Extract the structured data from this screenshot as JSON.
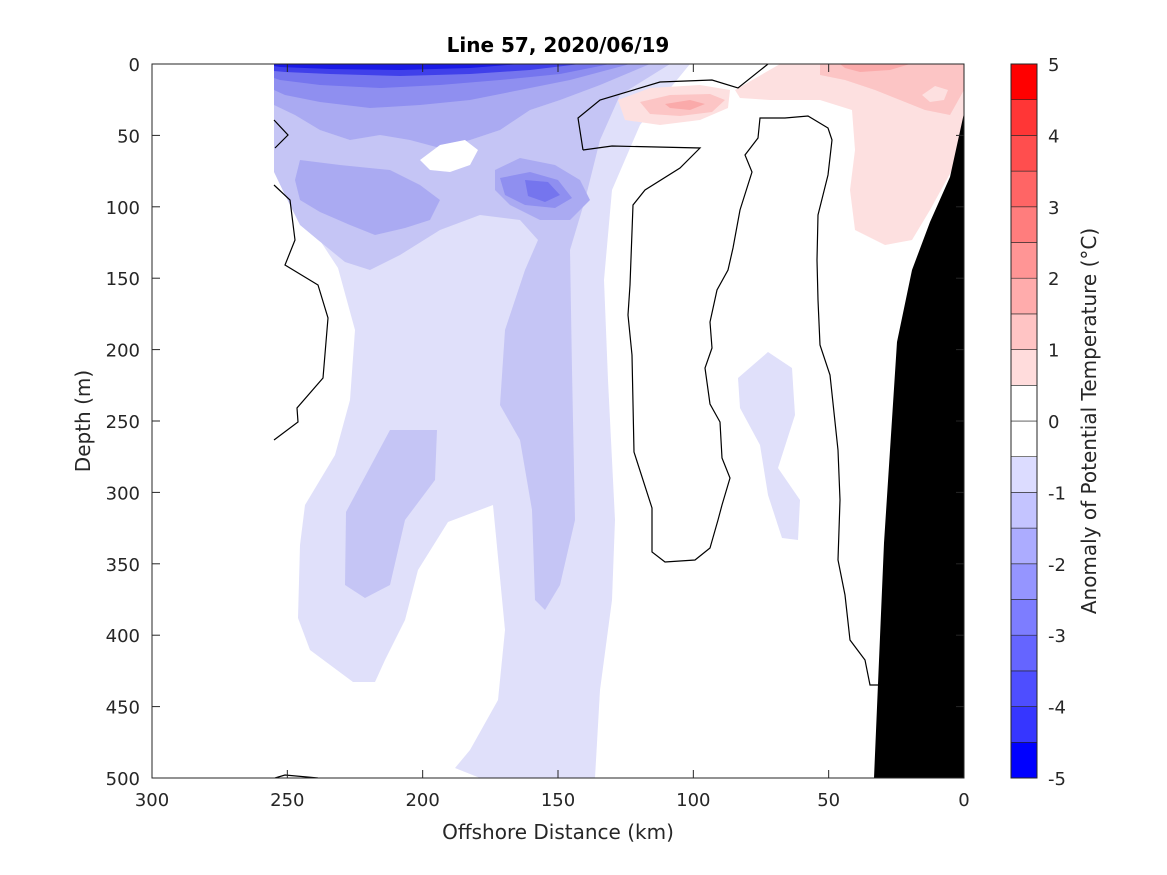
{
  "chart_data": {
    "type": "heatmap",
    "title": "Line 57, 2020/06/19",
    "xlabel": "Offshore Distance (km)",
    "ylabel": "Depth (m)",
    "colorbar_label": "Anomaly of Potential Temperature (°C)",
    "xlim": [
      300,
      0
    ],
    "ylim": [
      500,
      0
    ],
    "x_reversed": true,
    "y_reversed": true,
    "xticks": [
      "300",
      "250",
      "200",
      "150",
      "100",
      "50",
      "0"
    ],
    "yticks": [
      "0",
      "50",
      "100",
      "150",
      "200",
      "250",
      "300",
      "350",
      "400",
      "450",
      "500"
    ],
    "colorbar_ticks": [
      "5",
      "4",
      "3",
      "2",
      "1",
      "0",
      "-1",
      "-2",
      "-3",
      "-4",
      "-5"
    ],
    "colorbar_range": [
      -5,
      5
    ],
    "contour_interval": 0.5,
    "colors": {
      "positive_max": "#ff0000",
      "negative_max": "#0000ff",
      "zero": "#ffffff",
      "bathymetry": "#000000"
    },
    "data_extent_x": [
      0,
      255
    ],
    "features": [
      {
        "kind": "negative",
        "peak_anomaly": -4.5,
        "x": [
          255,
          140
        ],
        "depth": [
          0,
          20
        ]
      },
      {
        "kind": "negative",
        "peak_anomaly": -2.5,
        "x": [
          160,
          145
        ],
        "depth": [
          80,
          95
        ]
      },
      {
        "kind": "negative",
        "peak_anomaly": -1.5,
        "x": [
          250,
          130
        ],
        "depth": [
          50,
          120
        ]
      },
      {
        "kind": "negative",
        "peak_anomaly": -1.5,
        "x": [
          215,
          195
        ],
        "depth": [
          260,
          370
        ]
      },
      {
        "kind": "negative",
        "peak_anomaly": -1.0,
        "x": [
          175,
          140
        ],
        "depth": [
          120,
          500
        ]
      },
      {
        "kind": "positive",
        "peak_anomaly": 1.5,
        "x": [
          50,
          0
        ],
        "depth": [
          0,
          20
        ]
      },
      {
        "kind": "positive",
        "peak_anomaly": 1.5,
        "x": [
          120,
          95
        ],
        "depth": [
          20,
          40
        ]
      },
      {
        "kind": "positive",
        "peak_anomaly": 0.5,
        "x": [
          80,
          15
        ],
        "depth": [
          0,
          150
        ]
      }
    ],
    "bathymetry": [
      {
        "x": 0,
        "depth": 35
      },
      {
        "x": 10,
        "depth": 110
      },
      {
        "x": 20,
        "depth": 150
      },
      {
        "x": 25,
        "depth": 200
      },
      {
        "x": 30,
        "depth": 340
      },
      {
        "x": 33,
        "depth": 500
      }
    ]
  }
}
